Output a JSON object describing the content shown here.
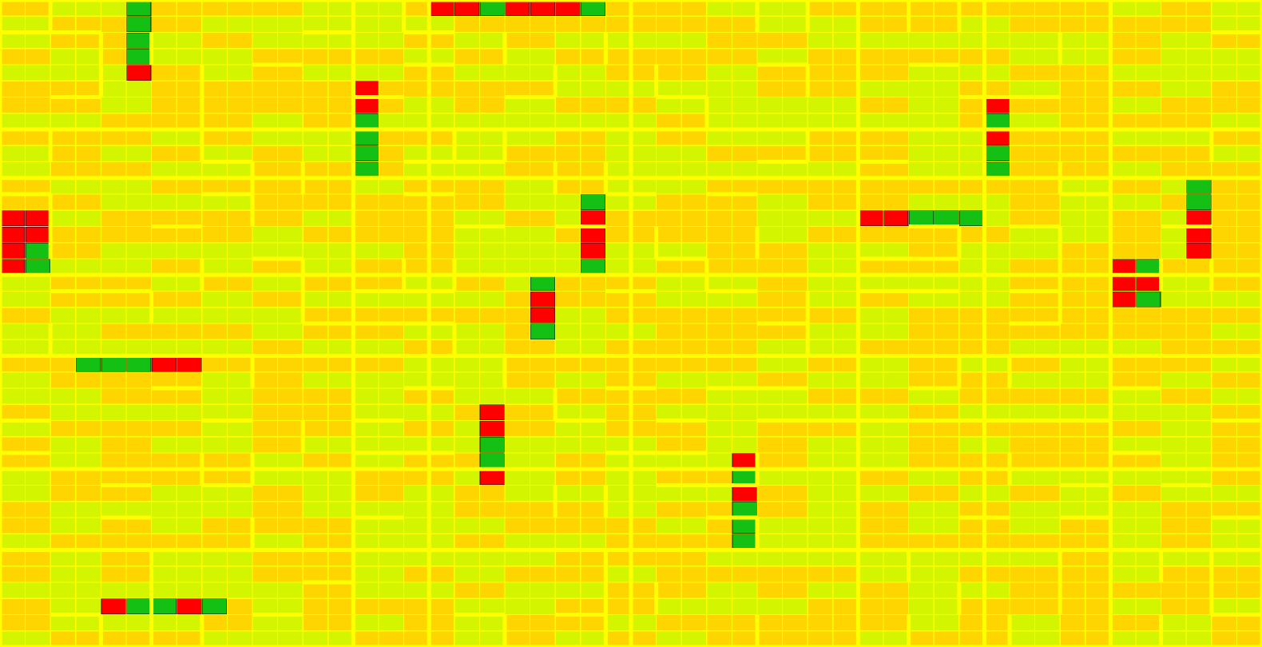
{
  "colors": {
    "background": "#ffff00",
    "orange": "#ffd500",
    "lime": "#d4f500",
    "red": "#ff0000",
    "green": "#14c014"
  },
  "board": {
    "columns": 50,
    "rows": 40,
    "highlighted_pieces": [
      {
        "name": "piece-a",
        "cells": [
          [
            5,
            0,
            "green"
          ],
          [
            5,
            1,
            "green"
          ],
          [
            5,
            2,
            "green"
          ],
          [
            5,
            3,
            "green"
          ],
          [
            5,
            4,
            "red"
          ]
        ]
      },
      {
        "name": "piece-b",
        "cells": [
          [
            17,
            0,
            "red"
          ],
          [
            18,
            0,
            "red"
          ],
          [
            19,
            0,
            "green"
          ],
          [
            20,
            0,
            "red"
          ],
          [
            21,
            0,
            "red"
          ],
          [
            22,
            0,
            "red"
          ],
          [
            23,
            0,
            "green"
          ]
        ]
      },
      {
        "name": "piece-c",
        "cells": [
          [
            14,
            5,
            "red"
          ],
          [
            14,
            6,
            "red"
          ],
          [
            14,
            7,
            "green"
          ],
          [
            14,
            8,
            "green"
          ],
          [
            14,
            9,
            "green"
          ],
          [
            14,
            10,
            "green"
          ]
        ]
      },
      {
        "name": "piece-d",
        "cells": [
          [
            39,
            6,
            "red"
          ],
          [
            39,
            7,
            "green"
          ],
          [
            39,
            8,
            "red"
          ],
          [
            39,
            9,
            "green"
          ],
          [
            39,
            10,
            "green"
          ]
        ]
      },
      {
        "name": "piece-e",
        "cells": [
          [
            0,
            13,
            "red"
          ],
          [
            1,
            13,
            "red"
          ],
          [
            0,
            14,
            "red"
          ],
          [
            1,
            14,
            "red"
          ],
          [
            0,
            15,
            "red"
          ],
          [
            1,
            15,
            "green"
          ],
          [
            0,
            16,
            "red"
          ],
          [
            1,
            16,
            "green"
          ]
        ]
      },
      {
        "name": "piece-f",
        "cells": [
          [
            23,
            12,
            "green"
          ],
          [
            23,
            13,
            "red"
          ],
          [
            23,
            14,
            "red"
          ],
          [
            23,
            15,
            "red"
          ],
          [
            23,
            16,
            "green"
          ]
        ]
      },
      {
        "name": "piece-g",
        "cells": [
          [
            34,
            13,
            "red"
          ],
          [
            35,
            13,
            "red"
          ],
          [
            36,
            13,
            "green"
          ],
          [
            37,
            13,
            "green"
          ],
          [
            38,
            13,
            "green"
          ]
        ]
      },
      {
        "name": "piece-h",
        "cells": [
          [
            47,
            11,
            "green"
          ],
          [
            47,
            12,
            "green"
          ],
          [
            47,
            13,
            "red"
          ],
          [
            47,
            14,
            "red"
          ],
          [
            47,
            15,
            "red"
          ]
        ]
      },
      {
        "name": "piece-i",
        "cells": [
          [
            44,
            16,
            "red"
          ],
          [
            45,
            16,
            "green"
          ],
          [
            44,
            17,
            "red"
          ],
          [
            45,
            17,
            "red"
          ],
          [
            44,
            18,
            "red"
          ],
          [
            45,
            18,
            "green"
          ]
        ]
      },
      {
        "name": "piece-j",
        "cells": [
          [
            21,
            17,
            "green"
          ],
          [
            21,
            18,
            "red"
          ],
          [
            21,
            19,
            "red"
          ],
          [
            21,
            20,
            "green"
          ]
        ]
      },
      {
        "name": "piece-k",
        "cells": [
          [
            3,
            22,
            "green"
          ],
          [
            4,
            22,
            "green"
          ],
          [
            5,
            22,
            "green"
          ],
          [
            6,
            22,
            "red"
          ],
          [
            7,
            22,
            "red"
          ]
        ]
      },
      {
        "name": "piece-l",
        "cells": [
          [
            19,
            25,
            "red"
          ],
          [
            19,
            26,
            "red"
          ],
          [
            19,
            27,
            "green"
          ],
          [
            19,
            28,
            "green"
          ],
          [
            19,
            29,
            "red"
          ]
        ]
      },
      {
        "name": "piece-m",
        "cells": [
          [
            29,
            28,
            "red"
          ],
          [
            29,
            29,
            "green"
          ],
          [
            29,
            30,
            "red"
          ],
          [
            29,
            31,
            "green"
          ],
          [
            29,
            32,
            "green"
          ],
          [
            29,
            33,
            "green"
          ]
        ]
      },
      {
        "name": "piece-n",
        "cells": [
          [
            4,
            37,
            "red"
          ],
          [
            5,
            37,
            "green"
          ],
          [
            6,
            37,
            "green"
          ],
          [
            7,
            37,
            "red"
          ],
          [
            8,
            37,
            "green"
          ]
        ]
      }
    ]
  }
}
